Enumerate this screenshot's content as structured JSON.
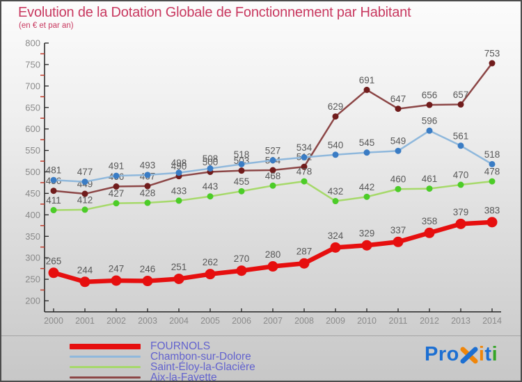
{
  "header": {
    "title": "Evolution de la Dotation Globale de Fonctionnement par Habitant",
    "subtitle": "(en € et par an)",
    "title_color": "#c8385f"
  },
  "chart_data": {
    "type": "line",
    "x": [
      "2000",
      "2001",
      "2002",
      "2003",
      "2004",
      "2005",
      "2006",
      "2007",
      "2008",
      "2009",
      "2010",
      "2011",
      "2012",
      "2013",
      "2014"
    ],
    "series": [
      {
        "name": "FOURNOLS",
        "color": "#e60f0f",
        "dot_color": "#e60f0f",
        "line_width": 6.5,
        "dot_radius": 7.5,
        "swatch_height": 8,
        "values": [
          265,
          244,
          247,
          246,
          251,
          262,
          270,
          280,
          287,
          324,
          329,
          337,
          358,
          379,
          383
        ]
      },
      {
        "name": "Chambon-sur-Dolore",
        "color": "#8fb8dc",
        "dot_color": "#3a7cc4",
        "line_width": 2.5,
        "dot_radius": 4.5,
        "swatch_height": 3,
        "values": [
          481,
          477,
          491,
          493,
          498,
          508,
          518,
          527,
          534,
          540,
          545,
          549,
          596,
          561,
          518
        ]
      },
      {
        "name": "Saint-Éloy-la-Glacière",
        "color": "#a6d96a",
        "dot_color": "#4ccc28",
        "line_width": 2.5,
        "dot_radius": 4.5,
        "swatch_height": 3,
        "values": [
          411,
          412,
          427,
          428,
          433,
          443,
          455,
          468,
          478,
          432,
          442,
          460,
          461,
          470,
          478
        ]
      },
      {
        "name": "Aix-la-Fayette",
        "color": "#8c4646",
        "dot_color": "#701c1c",
        "line_width": 2.5,
        "dot_radius": 4.5,
        "swatch_height": 3,
        "values": [
          456,
          449,
          466,
          467,
          490,
          500,
          503,
          504,
          512,
          629,
          691,
          647,
          656,
          657,
          753
        ]
      }
    ],
    "draw_order": [
      3,
      2,
      1,
      0
    ],
    "ylim": [
      200,
      800
    ],
    "y_major_step": 50,
    "y_minor_step": 25,
    "grid": false,
    "legend_position": "bottom-left",
    "xlabel": "",
    "ylabel": "",
    "colors": {
      "value_label": "#585858",
      "axis": "#222222",
      "tick_label": "#8a8a8a",
      "minor_tick": "#c23b2a"
    }
  },
  "logo": {
    "pro": "Pro",
    "i1": "i",
    "t": "t",
    "i2": "i",
    "blue": "#1c6fd2",
    "orange": "#f0860a",
    "green": "#34a527"
  }
}
